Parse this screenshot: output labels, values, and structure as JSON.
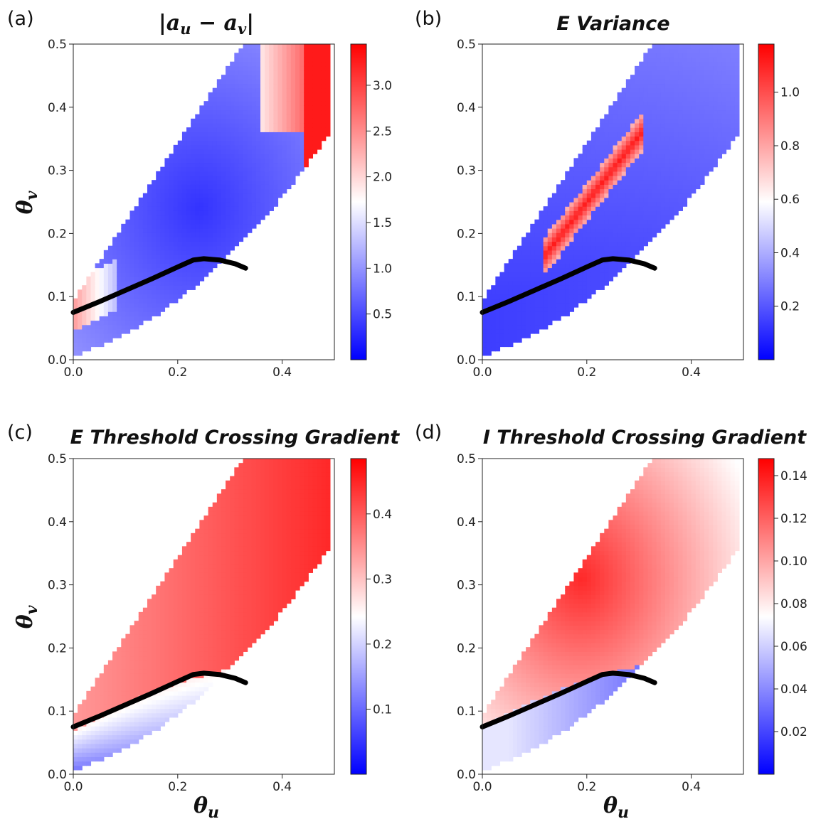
{
  "figure": {
    "x_axis_label": "θ",
    "x_axis_sub": "u",
    "y_axis_label": "θ",
    "y_axis_sub": "v"
  },
  "colors": {
    "low": "#0000ff",
    "mid": "#ffffff",
    "high": "#ff0000",
    "boundary_line": "#000000"
  },
  "chart_data": [
    {
      "type": "heatmap",
      "panel_label": "(a)",
      "title": "|a_u − a_v|",
      "title_math": {
        "open": "|",
        "a1": "a",
        "s1": "u",
        "op": " − ",
        "a2": "a",
        "s2": "v",
        "close": "|"
      },
      "x_ticks": [
        "0.0",
        "0.2",
        "0.4"
      ],
      "y_ticks": [
        "0.0",
        "0.1",
        "0.2",
        "0.3",
        "0.4",
        "0.5"
      ],
      "xlim": [
        0,
        0.5
      ],
      "ylim": [
        0,
        0.5
      ],
      "colorbar": {
        "min": 0,
        "max": 3.45,
        "ticks": [
          0.5,
          1.0,
          1.5,
          2.0,
          2.5,
          3.0
        ],
        "tick_labels": [
          "0.5",
          "1.0",
          "1.5",
          "2.0",
          "2.5",
          "3.0"
        ]
      },
      "pattern": "a",
      "boundary_curve": {
        "x": [
          0.0,
          0.05,
          0.1,
          0.15,
          0.2,
          0.23,
          0.25,
          0.28,
          0.31,
          0.33
        ],
        "y": [
          0.075,
          0.092,
          0.11,
          0.128,
          0.147,
          0.158,
          0.16,
          0.158,
          0.152,
          0.145
        ]
      }
    },
    {
      "type": "heatmap",
      "panel_label": "(b)",
      "title": "E Variance",
      "x_ticks": [
        "0.0",
        "0.2",
        "0.4"
      ],
      "y_ticks": [
        "0.0",
        "0.1",
        "0.2",
        "0.3",
        "0.4",
        "0.5"
      ],
      "xlim": [
        0,
        0.5
      ],
      "ylim": [
        0,
        0.5
      ],
      "colorbar": {
        "min": 0,
        "max": 1.18,
        "ticks": [
          0.2,
          0.4,
          0.6,
          0.8,
          1.0
        ],
        "tick_labels": [
          "0.2",
          "0.4",
          "0.6",
          "0.8",
          "1.0"
        ]
      },
      "pattern": "b",
      "boundary_curve": {
        "x": [
          0.0,
          0.05,
          0.1,
          0.15,
          0.2,
          0.23,
          0.25,
          0.28,
          0.31,
          0.33
        ],
        "y": [
          0.075,
          0.092,
          0.11,
          0.128,
          0.147,
          0.158,
          0.16,
          0.158,
          0.152,
          0.145
        ]
      }
    },
    {
      "type": "heatmap",
      "panel_label": "(c)",
      "title": "E Threshold Crossing Gradient",
      "x_ticks": [
        "0.0",
        "0.2",
        "0.4"
      ],
      "y_ticks": [
        "0.0",
        "0.1",
        "0.2",
        "0.3",
        "0.4",
        "0.5"
      ],
      "xlim": [
        0,
        0.5
      ],
      "ylim": [
        0,
        0.5
      ],
      "colorbar": {
        "min": 0,
        "max": 0.485,
        "ticks": [
          0.1,
          0.2,
          0.3,
          0.4
        ],
        "tick_labels": [
          "0.1",
          "0.2",
          "0.3",
          "0.4"
        ]
      },
      "pattern": "c",
      "boundary_curve": {
        "x": [
          0.0,
          0.05,
          0.1,
          0.15,
          0.2,
          0.23,
          0.25,
          0.28,
          0.31,
          0.33
        ],
        "y": [
          0.075,
          0.092,
          0.11,
          0.128,
          0.147,
          0.158,
          0.16,
          0.158,
          0.152,
          0.145
        ]
      }
    },
    {
      "type": "heatmap",
      "panel_label": "(d)",
      "title": "I Threshold Crossing Gradient",
      "x_ticks": [
        "0.0",
        "0.2",
        "0.4"
      ],
      "y_ticks": [
        "0.0",
        "0.1",
        "0.2",
        "0.3",
        "0.4",
        "0.5"
      ],
      "xlim": [
        0,
        0.5
      ],
      "ylim": [
        0,
        0.5
      ],
      "colorbar": {
        "min": 0,
        "max": 0.148,
        "ticks": [
          0.02,
          0.04,
          0.06,
          0.08,
          0.1,
          0.12,
          0.14
        ],
        "tick_labels": [
          "0.02",
          "0.04",
          "0.06",
          "0.08",
          "0.10",
          "0.12",
          "0.14"
        ]
      },
      "pattern": "d",
      "boundary_curve": {
        "x": [
          0.0,
          0.05,
          0.1,
          0.15,
          0.2,
          0.23,
          0.25,
          0.28,
          0.31,
          0.33
        ],
        "y": [
          0.075,
          0.092,
          0.11,
          0.128,
          0.147,
          0.158,
          0.16,
          0.158,
          0.152,
          0.145
        ]
      }
    }
  ]
}
